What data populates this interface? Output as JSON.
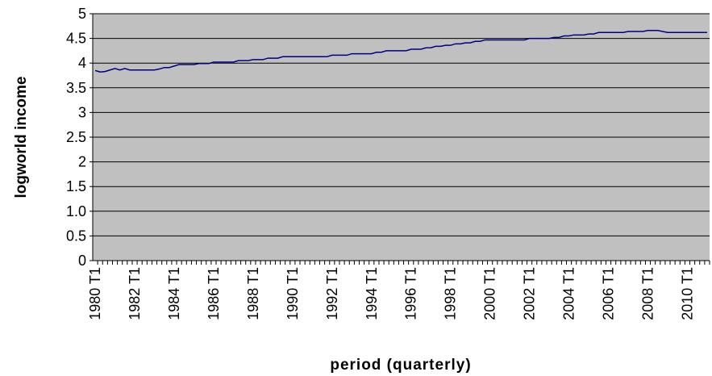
{
  "chart_data": {
    "type": "line",
    "y_label": "logworld income",
    "x_label": "period (quarterly)",
    "categories": [
      "1980 T1",
      null,
      null,
      null,
      null,
      null,
      null,
      null,
      "1982 T1",
      null,
      null,
      null,
      null,
      null,
      null,
      null,
      "1984 T1",
      null,
      null,
      null,
      null,
      null,
      null,
      null,
      "1986 T1",
      null,
      null,
      null,
      null,
      null,
      null,
      null,
      "1988 T1",
      null,
      null,
      null,
      null,
      null,
      null,
      null,
      "1990 T1",
      null,
      null,
      null,
      null,
      null,
      null,
      null,
      "1992 T1",
      null,
      null,
      null,
      null,
      null,
      null,
      null,
      "1994 T1",
      null,
      null,
      null,
      null,
      null,
      null,
      null,
      "1996 T1",
      null,
      null,
      null,
      null,
      null,
      null,
      null,
      "1998 T1",
      null,
      null,
      null,
      null,
      null,
      null,
      null,
      "2000 T1",
      null,
      null,
      null,
      null,
      null,
      null,
      null,
      "2002 T1",
      null,
      null,
      null,
      null,
      null,
      null,
      null,
      "2004 T1",
      null,
      null,
      null,
      null,
      null,
      null,
      null,
      "2006 T1",
      null,
      null,
      null,
      null,
      null,
      null,
      null,
      "2008 T1",
      null,
      null,
      null,
      null,
      null,
      null,
      null,
      "2010 T1",
      null,
      null,
      null,
      null
    ],
    "values": [
      3.85,
      3.82,
      3.83,
      3.86,
      3.89,
      3.86,
      3.89,
      3.86,
      3.86,
      3.86,
      3.86,
      3.86,
      3.86,
      3.88,
      3.91,
      3.91,
      3.94,
      3.97,
      3.97,
      3.97,
      3.97,
      3.99,
      3.99,
      3.99,
      4.02,
      4.02,
      4.02,
      4.02,
      4.02,
      4.05,
      4.05,
      4.05,
      4.07,
      4.07,
      4.07,
      4.1,
      4.1,
      4.1,
      4.13,
      4.13,
      4.13,
      4.13,
      4.13,
      4.13,
      4.13,
      4.13,
      4.13,
      4.13,
      4.16,
      4.16,
      4.16,
      4.16,
      4.19,
      4.19,
      4.19,
      4.19,
      4.19,
      4.22,
      4.22,
      4.25,
      4.25,
      4.25,
      4.25,
      4.25,
      4.28,
      4.28,
      4.28,
      4.31,
      4.31,
      4.34,
      4.34,
      4.36,
      4.36,
      4.39,
      4.39,
      4.41,
      4.41,
      4.44,
      4.44,
      4.47,
      4.47,
      4.47,
      4.47,
      4.47,
      4.47,
      4.47,
      4.47,
      4.47,
      4.5,
      4.5,
      4.5,
      4.5,
      4.5,
      4.52,
      4.52,
      4.55,
      4.55,
      4.57,
      4.57,
      4.57,
      4.59,
      4.59,
      4.62,
      4.62,
      4.62,
      4.62,
      4.62,
      4.62,
      4.64,
      4.64,
      4.64,
      4.64,
      4.66,
      4.66,
      4.66,
      4.64,
      4.62,
      4.62,
      4.62,
      4.62,
      4.62,
      4.62,
      4.62,
      4.62,
      4.62
    ],
    "color": "#000080",
    "ylim": [
      0,
      5
    ],
    "yticks": [
      0,
      0.5,
      {
        "value": 1,
        "label": "1.0"
      },
      1.5,
      2,
      2.5,
      3,
      3.5,
      4,
      4.5,
      5
    ],
    "grid": true
  }
}
